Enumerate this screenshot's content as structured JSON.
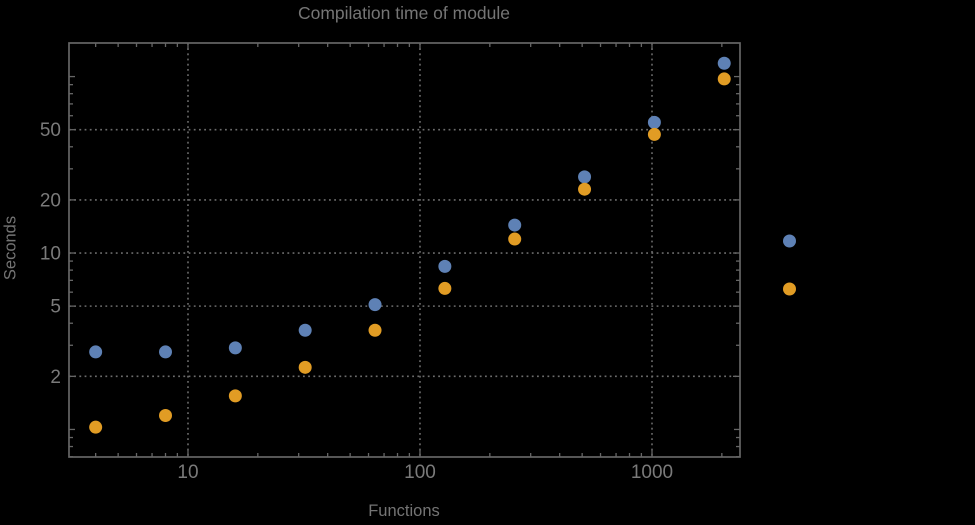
{
  "page": {
    "background": "#000000"
  },
  "colors": {
    "text": "#7a7a7a",
    "frame": "#666666",
    "grid": "#6c6c6c",
    "series_blue": "#5E81B5",
    "series_orange": "#E19C24"
  },
  "chart_data": {
    "type": "scatter",
    "title": "Compilation time of module",
    "xlabel": "Functions",
    "ylabel": "Seconds",
    "xscale": "log",
    "yscale": "log",
    "grid": "dotted",
    "legend_position": "right-outside-unlabeled",
    "x": [
      4,
      8,
      16,
      32,
      64,
      128,
      256,
      512,
      1024,
      2048
    ],
    "series": [
      {
        "name": "blue-series",
        "color": "#5E81B5",
        "values": [
          2.75,
          2.75,
          2.9,
          3.65,
          5.1,
          8.4,
          14.4,
          27,
          55,
          119
        ]
      },
      {
        "name": "orange-series",
        "color": "#E19C24",
        "values": [
          1.03,
          1.2,
          1.55,
          2.25,
          3.65,
          6.3,
          12,
          23,
          47,
          97
        ]
      }
    ],
    "x_ticks": [
      10,
      100,
      1000
    ],
    "x_tick_labels": [
      "10",
      "100",
      "1000"
    ],
    "y_ticks": [
      2,
      5,
      10,
      20,
      50
    ],
    "y_tick_labels": [
      "2",
      "5",
      "10",
      "20",
      "50"
    ],
    "y_ticks_unlabeled": [
      1,
      100
    ],
    "xlim": [
      3.07,
      2395
    ],
    "ylim": [
      0.698,
      155
    ]
  }
}
